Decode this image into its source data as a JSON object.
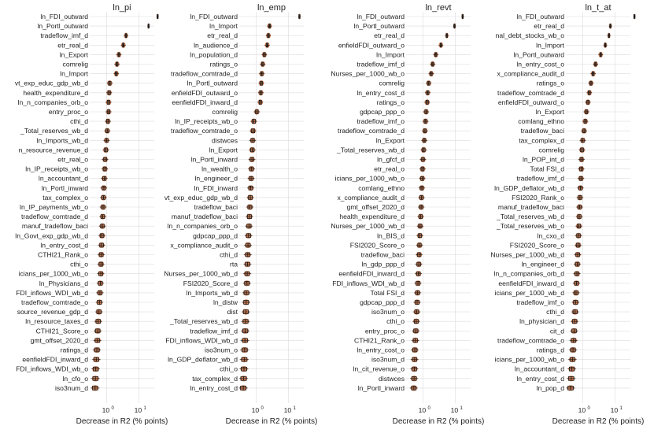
{
  "chart_data": [
    {
      "type": "box",
      "title": "ln_pi",
      "xlabel": "Decrease in R2 (% points)",
      "xscale": "log",
      "xlim": [
        0.3,
        30
      ],
      "xticks": [
        {
          "base": "10",
          "exp": "0",
          "value": 1
        },
        {
          "base": "10",
          "exp": "1",
          "value": 10
        }
      ],
      "grid": true,
      "categories": [
        "ln_FDI_outward",
        "ln_Portl_outward",
        "tradeflow_imf_d",
        "etr_real_d",
        "ln_Export",
        "comrelig",
        "ln_Import",
        "vt_exp_educ_gdp_wb_d",
        "health_expenditure_d",
        "ln_n_companies_orb_o",
        "entry_proc_o",
        "cthi_d",
        "_Total_reserves_wb_d",
        "ln_Imports_wb_d",
        "n_resource_revenue_d",
        "etr_real_o",
        "ln_IP_receipts_wb_o",
        "ln_accountant_d",
        "ln_Portl_inward",
        "tax_complex_o",
        "ln_IP_payments_wb_o",
        "tradeflow_comtrade_d",
        "manuf_tradeflow_baci",
        "ln_Govt_exp_gdp_wb_d",
        "ln_entry_cost_d",
        "CTHI21_Rank_o",
        "cthi_o",
        "icians_per_1000_wb_o",
        "ln_Physicians_d",
        "FDI_inflows_WDI_wb_d",
        "tradeflow_comtrade_o",
        "source_revenue_gdp_d",
        "ln_resource_taxes_d",
        "CTHI21_Score_o",
        "gmt_offset_2020_d",
        "ratings_d",
        "eenfieldFDI_inward_d",
        "FDI_inflows_WDI_wb_o",
        "ln_cfo_o",
        "iso3num_d"
      ],
      "values": [
        38,
        20,
        4.0,
        3.3,
        2.4,
        2.1,
        2.0,
        1.25,
        1.2,
        1.15,
        1.15,
        1.1,
        1.05,
        1.0,
        0.95,
        0.9,
        0.88,
        0.85,
        0.82,
        0.8,
        0.78,
        0.76,
        0.74,
        0.72,
        0.7,
        0.68,
        0.67,
        0.66,
        0.64,
        0.62,
        0.6,
        0.58,
        0.55,
        0.53,
        0.52,
        0.5,
        0.48,
        0.46,
        0.45,
        0.44
      ]
    },
    {
      "type": "box",
      "title": "ln_emp",
      "xlabel": "Decrease in R2 (% points)",
      "xscale": "log",
      "xlim": [
        0.3,
        30
      ],
      "xticks": [
        {
          "base": "10",
          "exp": "0",
          "value": 1
        },
        {
          "base": "10",
          "exp": "1",
          "value": 10
        }
      ],
      "grid": true,
      "categories": [
        "ln_FDI_outward",
        "ln_Import",
        "etr_real_d",
        "ln_audience_d",
        "ln_population_d",
        "ratings_o",
        "tradeflow_comtrade_d",
        "ln_Portl_outward",
        "enfieldFDI_outward_o",
        "eenfieldFDI_inward_d",
        "comrelig",
        "ln_IP_receipts_wb_o",
        "tradeflow_comtrade_o",
        "distwces",
        "ln_Export",
        "ln_Portl_inward",
        "ln_wealth_o",
        "ln_engineer_d",
        "ln_FDI_inward",
        "vt_exp_educ_gdp_wb_d",
        "tradeflow_baci",
        "manuf_tradeflow_baci",
        "ln_n_companies_orb_o",
        "gdpcap_ppp_d",
        "x_compliance_audit_o",
        "cthi_d",
        "rta",
        "Nurses_per_1000_wb_d",
        "FSI2020_Score_d",
        "ln_Imports_wb_d",
        "ln_distw",
        "dist",
        "_Total_reserves_wb_d",
        "tradeflow_imf_d",
        "FDI_inflows_WDI_wb_d",
        "iso3num_o",
        "ln_GDP_deflator_wb_d",
        "cthi_o",
        "tax_complex_d",
        "ln_entry_cost_d"
      ],
      "values": [
        22,
        2.6,
        2.4,
        2.2,
        1.8,
        1.6,
        1.5,
        1.45,
        1.4,
        1.35,
        1.05,
        0.85,
        0.8,
        0.78,
        0.76,
        0.74,
        0.72,
        0.7,
        0.68,
        0.66,
        0.64,
        0.62,
        0.6,
        0.58,
        0.56,
        0.55,
        0.54,
        0.53,
        0.52,
        0.5,
        0.49,
        0.48,
        0.47,
        0.46,
        0.45,
        0.44,
        0.43,
        0.42,
        0.41,
        0.4
      ]
    },
    {
      "type": "box",
      "title": "ln_revt",
      "xlabel": "Decrease in R2 (% points)",
      "xscale": "log",
      "xlim": [
        0.3,
        30
      ],
      "xticks": [
        {
          "base": "10",
          "exp": "0",
          "value": 1
        },
        {
          "base": "10",
          "exp": "1",
          "value": 10
        }
      ],
      "grid": true,
      "categories": [
        "ln_FDI_outward",
        "ln_Portl_outward",
        "etr_real_d",
        "enfieldFDI_outward_o",
        "ln_Import",
        "tradeflow_imf_d",
        "Nurses_per_1000_wb_o",
        "comrelig",
        "ln_entry_cost_d",
        "ratings_o",
        "gdpcap_ppp_o",
        "tradeflow_imf_o",
        "tradeflow_comtrade_d",
        "ln_Export",
        "_Total_reserves_wb_d",
        "ln_gfcf_d",
        "etr_real_o",
        "icians_per_1000_wb_o",
        "comlang_ethno",
        "x_compliance_audit_d",
        "gmt_offset_2020_d",
        "health_expenditure_d",
        "Nurses_per_1000_wb_d",
        "ln_BIS_d",
        "FSI2020_Score_o",
        "tradeflow_baci",
        "ln_gdp_ppp_d",
        "eenfieldFDI_inward_d",
        "FDI_inflows_WDI_wb_d",
        "Total FSI_d",
        "gdpcap_ppp_d",
        "iso3num_o",
        "cthi_o",
        "entry_proc_o",
        "CTHI21_Rank_o",
        "ln_entry_cost_o",
        "iso3num_d",
        "ln_cit_revenue_o",
        "distwces",
        "ln_Portl_inward"
      ],
      "values": [
        17,
        9.5,
        5.5,
        3.6,
        2.5,
        2.0,
        1.8,
        1.5,
        1.4,
        1.35,
        1.25,
        1.2,
        1.15,
        1.1,
        1.05,
        1.0,
        0.97,
        0.95,
        0.92,
        0.9,
        0.88,
        0.85,
        0.82,
        0.8,
        0.78,
        0.76,
        0.74,
        0.72,
        0.7,
        0.68,
        0.66,
        0.64,
        0.62,
        0.6,
        0.58,
        0.56,
        0.55,
        0.54,
        0.53,
        0.52
      ]
    },
    {
      "type": "box",
      "title": "ln_t_at",
      "xlabel": "Decrease in R2 (% points)",
      "xscale": "log",
      "xlim": [
        0.3,
        30
      ],
      "xticks": [
        {
          "base": "10",
          "exp": "0",
          "value": 1
        },
        {
          "base": "10",
          "exp": "1",
          "value": 10
        }
      ],
      "grid": true,
      "categories": [
        "ln_FDI_outward",
        "etr_real_d",
        "nal_debt_stocks_wb_o",
        "ln_Import",
        "ln_Portl_outward",
        "ln_entry_cost_o",
        "x_compliance_audit_d",
        "ratings_o",
        "tradeflow_comtrade_d",
        "enfieldFDI_outward_o",
        "ln_Export",
        "comlang_ethno",
        "tradeflow_baci",
        "tax_complex_d",
        "comrelig",
        "ln_POP_int_d",
        "Total FSI_d",
        "tradeflow_imf_d",
        "ln_GDP_deflator_wb_d",
        "FSI2020_Rank_o",
        "manuf_tradeflow_baci",
        "_Total_reserves_wb_d",
        "_Total_reserves_wb_o",
        "ln_cxo_d",
        "FSI2020_Score_o",
        "Nurses_per_1000_wb_d",
        "ln_engineer_d",
        "ln_n_companies_orb_d",
        "eenfieldFDI_inward_d",
        "icians_per_1000_wb_d",
        "tradeflow_imf_o",
        "cthi_d",
        "ln_physician_d",
        "cit_d",
        "tradeflow_comtrade_o",
        "ratings_d",
        "icians_per_1000_wb_o",
        "ln_accountant_d",
        "ln_entry_cost_d",
        "ln_pop_d"
      ],
      "values": [
        40,
        7.2,
        6.5,
        5.0,
        3.6,
        2.5,
        2.1,
        1.8,
        1.6,
        1.45,
        1.3,
        1.2,
        1.1,
        1.0,
        0.95,
        0.92,
        0.9,
        0.88,
        0.85,
        0.82,
        0.8,
        0.78,
        0.76,
        0.74,
        0.72,
        0.7,
        0.68,
        0.66,
        0.64,
        0.62,
        0.6,
        0.58,
        0.56,
        0.54,
        0.52,
        0.5,
        0.48,
        0.46,
        0.44,
        0.42
      ]
    }
  ],
  "colors": {
    "violin": "#c4683a",
    "box": "#1a1a1a",
    "grid": "#dcdcdc",
    "background": "#ffffff"
  }
}
